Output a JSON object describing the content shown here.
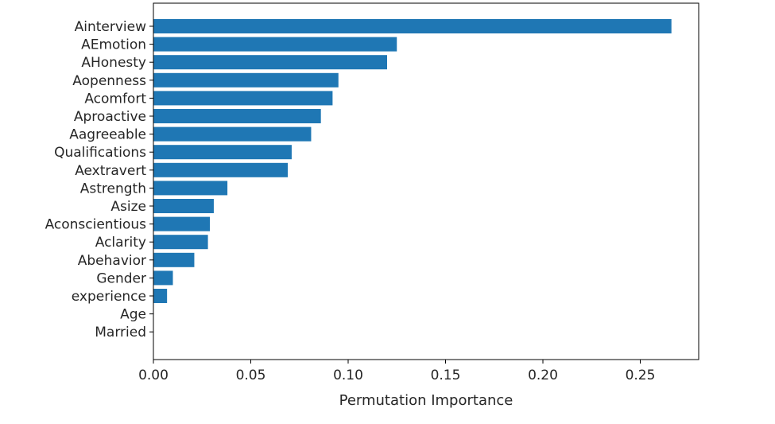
{
  "chart_data": {
    "type": "bar",
    "orientation": "horizontal",
    "title": "",
    "xlabel": "Permutation Importance",
    "ylabel": "",
    "bar_color": "#1f77b4",
    "xlim": [
      0,
      0.28
    ],
    "xticks": [
      0.0,
      0.05,
      0.1,
      0.15,
      0.2,
      0.25
    ],
    "xtick_labels": [
      "0.00",
      "0.05",
      "0.10",
      "0.15",
      "0.20",
      "0.25"
    ],
    "grid": false,
    "legend": "none",
    "categories": [
      "Ainterview",
      "AEmotion",
      "AHonesty",
      "Aopenness",
      "Acomfort",
      "Aproactive",
      "Aagreeable",
      "Qualifications",
      "Aextravert",
      "Astrength",
      "Asize",
      "Aconscientious",
      "Aclarity",
      "Abehavior",
      "Gender",
      "experience",
      "Age",
      "Married"
    ],
    "values": [
      0.266,
      0.125,
      0.12,
      0.095,
      0.092,
      0.086,
      0.081,
      0.071,
      0.069,
      0.038,
      0.031,
      0.029,
      0.028,
      0.021,
      0.01,
      0.007,
      0.0,
      0.0
    ]
  }
}
